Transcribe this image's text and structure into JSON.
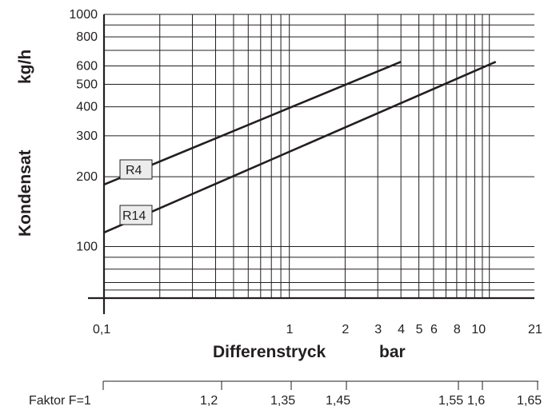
{
  "chart_data": {
    "type": "line",
    "xscale": "log",
    "yscale": "log",
    "xlabel": "Differenstryck",
    "xunit": "bar",
    "ylabel": "Kondensat",
    "yunit": "kg/h",
    "xlim": [
      0.1,
      21
    ],
    "ylim": [
      60,
      1000
    ],
    "x_ticks": [
      {
        "value": 0.1,
        "label": "0,1"
      },
      {
        "value": 1,
        "label": "1"
      },
      {
        "value": 2,
        "label": "2"
      },
      {
        "value": 3,
        "label": "3"
      },
      {
        "value": 4,
        "label": "4"
      },
      {
        "value": 5,
        "label": "5"
      },
      {
        "value": 6,
        "label": "6"
      },
      {
        "value": 8,
        "label": "8"
      },
      {
        "value": 10,
        "label": "10"
      },
      {
        "value": 21,
        "label": "21"
      }
    ],
    "x_gridlines": [
      0.2,
      0.3,
      0.4,
      0.5,
      0.6,
      0.7,
      0.8,
      0.9,
      1,
      2,
      3,
      4,
      5,
      6,
      7,
      8,
      9,
      10,
      11,
      12
    ],
    "y_ticks": [
      {
        "value": 100,
        "label": "100"
      },
      {
        "value": 200,
        "label": "200"
      },
      {
        "value": 300,
        "label": "300"
      },
      {
        "value": 400,
        "label": "400"
      },
      {
        "value": 500,
        "label": "500"
      },
      {
        "value": 600,
        "label": "600"
      },
      {
        "value": 800,
        "label": "800"
      },
      {
        "value": 1000,
        "label": "1000"
      }
    ],
    "y_gridlines": [
      65,
      70,
      80,
      90,
      100,
      200,
      300,
      400,
      500,
      600,
      700,
      800,
      900,
      1000
    ],
    "series": [
      {
        "name": "R4",
        "x": [
          0.1,
          4
        ],
        "y": [
          185,
          625
        ]
      },
      {
        "name": "R14",
        "x": [
          0.1,
          13
        ],
        "y": [
          115,
          625
        ]
      }
    ],
    "factor_axis": {
      "labels": [
        "Faktor F=1",
        "1,2",
        "1,35",
        "1,45",
        "1,55",
        "1,6",
        "1,65"
      ]
    }
  }
}
